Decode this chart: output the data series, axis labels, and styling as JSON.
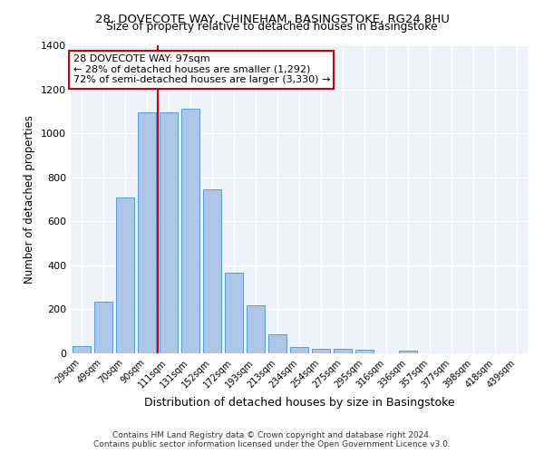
{
  "title1": "28, DOVECOTE WAY, CHINEHAM, BASINGSTOKE, RG24 8HU",
  "title2": "Size of property relative to detached houses in Basingstoke",
  "xlabel": "Distribution of detached houses by size in Basingstoke",
  "ylabel": "Number of detached properties",
  "categories": [
    "29sqm",
    "49sqm",
    "70sqm",
    "90sqm",
    "111sqm",
    "131sqm",
    "152sqm",
    "172sqm",
    "193sqm",
    "213sqm",
    "234sqm",
    "254sqm",
    "275sqm",
    "295sqm",
    "316sqm",
    "336sqm",
    "357sqm",
    "377sqm",
    "398sqm",
    "418sqm",
    "439sqm"
  ],
  "values": [
    32,
    235,
    710,
    1095,
    1095,
    1110,
    745,
    365,
    220,
    85,
    30,
    20,
    20,
    15,
    0,
    12,
    0,
    0,
    0,
    0,
    0
  ],
  "bar_color": "#aec6e8",
  "bar_edge_color": "#5b9bd5",
  "vline_x": 3.5,
  "annotation_text": "28 DOVECOTE WAY: 97sqm\n← 28% of detached houses are smaller (1,292)\n72% of semi-detached houses are larger (3,330) →",
  "annotation_box_color": "#ffffff",
  "annotation_box_edge": "#cc0000",
  "vline_color": "#cc0000",
  "ylim": [
    0,
    1400
  ],
  "yticks": [
    0,
    200,
    400,
    600,
    800,
    1000,
    1200,
    1400
  ],
  "bg_color": "#eef2f9",
  "footer1": "Contains HM Land Registry data © Crown copyright and database right 2024.",
  "footer2": "Contains public sector information licensed under the Open Government Licence v3.0.",
  "title1_fontsize": 9.5,
  "title2_fontsize": 8.8,
  "ylabel_fontsize": 8.5,
  "xlabel_fontsize": 9.0,
  "annot_fontsize": 8.0,
  "footer_fontsize": 6.5
}
